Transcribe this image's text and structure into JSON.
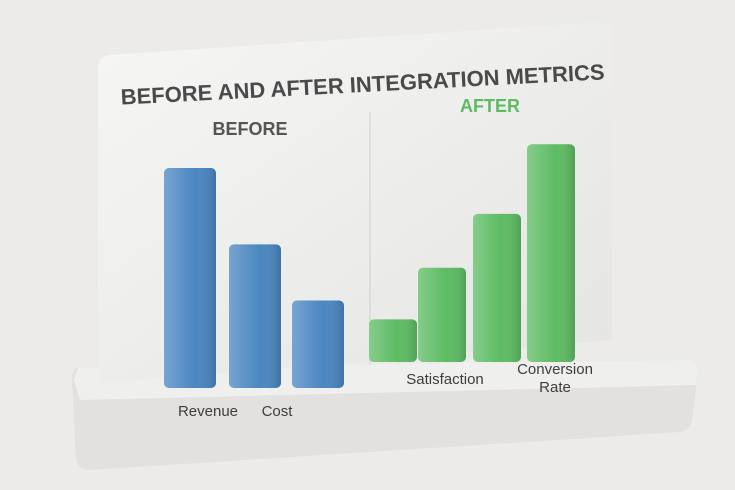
{
  "chart_data": {
    "type": "bar",
    "title": "BEFORE AND AFTER INTEGRATION METRICS",
    "groups": [
      {
        "name": "BEFORE",
        "color": "#4a86c0",
        "categories": [
          "Revenue",
          "Cost",
          null
        ],
        "values": [
          98,
          64,
          39
        ]
      },
      {
        "name": "AFTER",
        "color": "#5dbb63",
        "categories": [
          null,
          "Satisfaction",
          null,
          "Conversion Rate"
        ],
        "values": [
          19,
          42,
          66,
          97
        ]
      }
    ]
  }
}
